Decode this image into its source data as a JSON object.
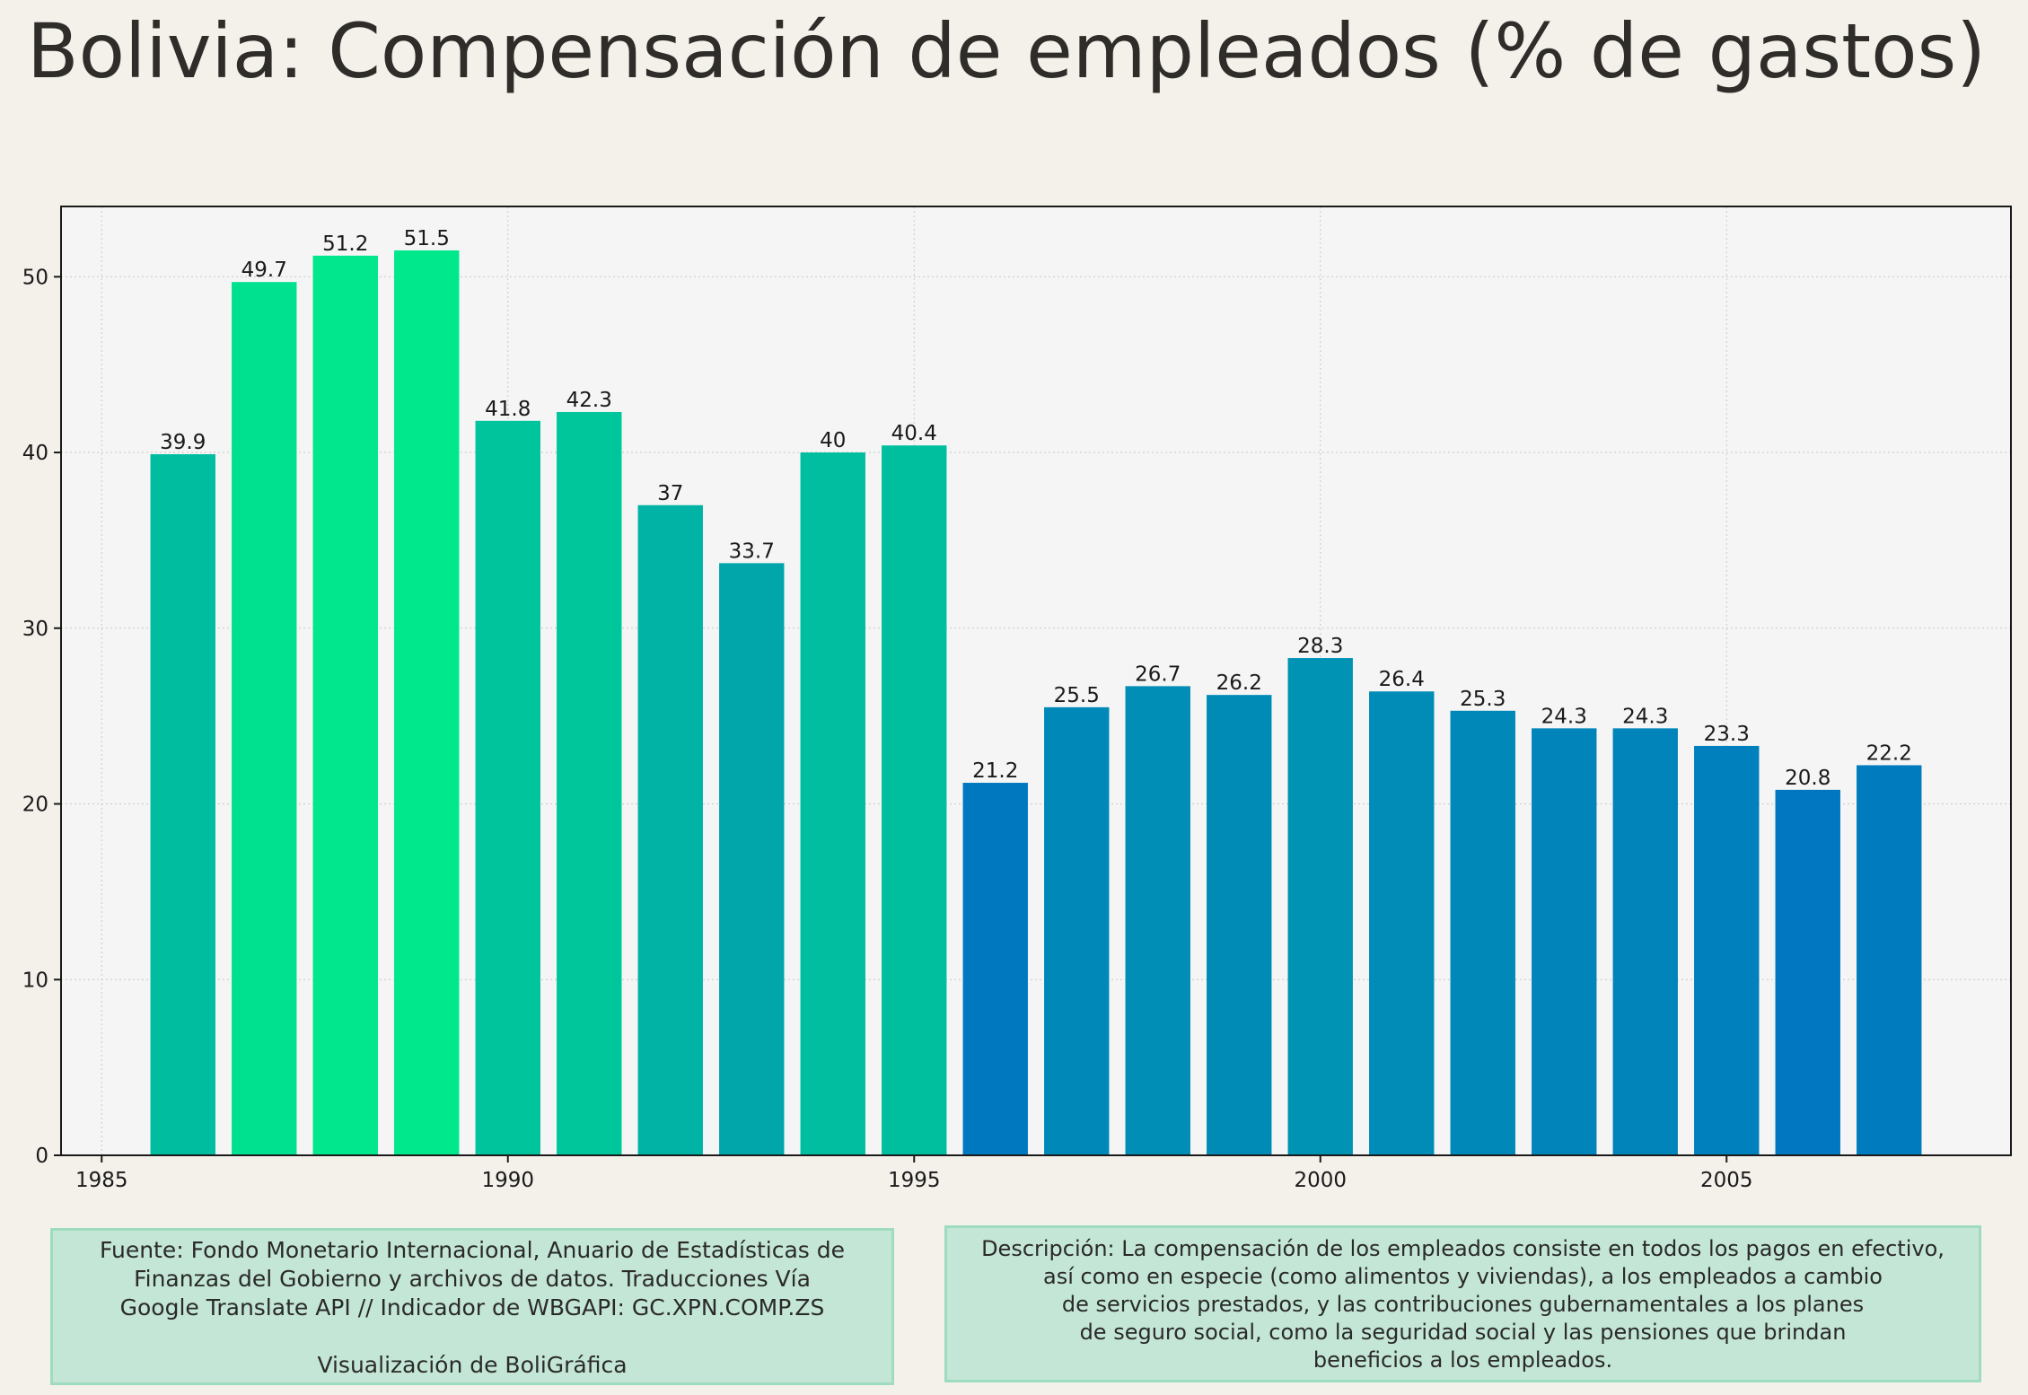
{
  "title": "Bolivia:  Compensación de empleados (% de gastos)",
  "chart_data": {
    "type": "bar",
    "x": [
      1986,
      1987,
      1988,
      1989,
      1990,
      1991,
      1992,
      1993,
      1994,
      1995,
      1996,
      1997,
      1998,
      1999,
      2000,
      2001,
      2002,
      2003,
      2004,
      2005,
      2006,
      2007
    ],
    "values": [
      39.9,
      49.7,
      51.2,
      51.5,
      41.8,
      42.3,
      37,
      33.7,
      40,
      40.4,
      21.2,
      25.5,
      26.7,
      26.2,
      28.3,
      26.4,
      25.3,
      24.3,
      24.3,
      23.3,
      20.8,
      22.2
    ],
    "xlim": [
      1984.5,
      2008.5
    ],
    "ylim": [
      0,
      54
    ],
    "xticks": [
      1985,
      1990,
      1995,
      2000,
      2005
    ],
    "yticks": [
      0,
      10,
      20,
      30,
      40,
      50
    ],
    "grid": true,
    "color_scale": {
      "low": "#0077c0",
      "high": "#00e88c"
    }
  },
  "source": {
    "lines": [
      "Fuente: Fondo Monetario Internacional, Anuario de Estadísticas de",
      "Finanzas del Gobierno y archivos de datos. Traducciones Vía",
      "Google Translate API // Indicador de WBGAPI: GC.XPN.COMP.ZS"
    ],
    "credit": "Visualización de BoliGráfica"
  },
  "description": {
    "lines": [
      "Descripción: La compensación de los empleados consiste en todos los pagos en efectivo,",
      "así como en especie (como alimentos y viviendas), a los empleados a cambio",
      "de servicios prestados, y las contribuciones gubernamentales a los planes",
      "de seguro social, como la seguridad social y las pensiones que brindan",
      "beneficios a los empleados."
    ]
  }
}
